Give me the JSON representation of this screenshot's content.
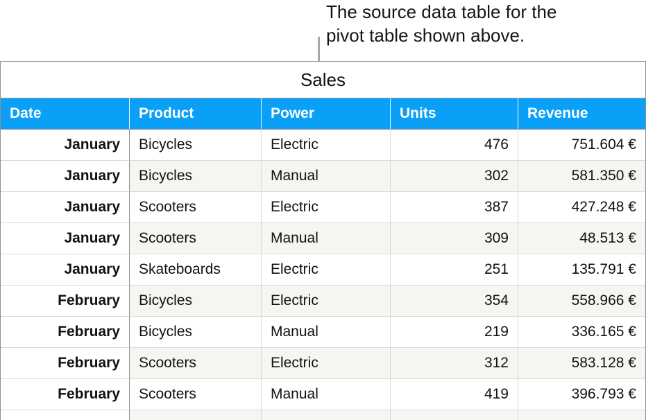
{
  "callout": {
    "line1": "The source data table for the",
    "line2": "pivot table shown above."
  },
  "table": {
    "title": "Sales",
    "columns": [
      "Date",
      "Product",
      "Power",
      "Units",
      "Revenue"
    ],
    "rows": [
      [
        "January",
        "Bicycles",
        "Electric",
        "476",
        "751.604 €"
      ],
      [
        "January",
        "Bicycles",
        "Manual",
        "302",
        "581.350 €"
      ],
      [
        "January",
        "Scooters",
        "Electric",
        "387",
        "427.248 €"
      ],
      [
        "January",
        "Scooters",
        "Manual",
        "309",
        "48.513 €"
      ],
      [
        "January",
        "Skateboards",
        "Electric",
        "251",
        "135.791 €"
      ],
      [
        "February",
        "Bicycles",
        "Electric",
        "354",
        "558.966 €"
      ],
      [
        "February",
        "Bicycles",
        "Manual",
        "219",
        "336.165 €"
      ],
      [
        "February",
        "Scooters",
        "Electric",
        "312",
        "583.128 €"
      ],
      [
        "February",
        "Scooters",
        "Manual",
        "419",
        "396.793 €"
      ]
    ]
  },
  "colors": {
    "header_bg": "#0aa0f8",
    "header_text": "#ffffff",
    "row_alt_bg": "#f5f5f2",
    "border_light": "#d9d9d9",
    "border_dark": "#8f8f8f",
    "connector_line": "#a6a6a6"
  }
}
